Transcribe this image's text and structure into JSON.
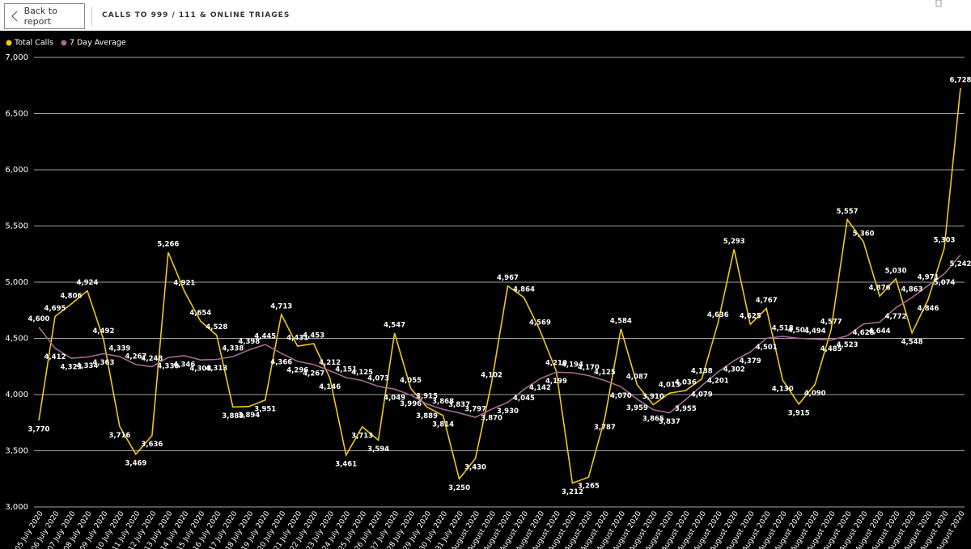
{
  "header": {
    "back_button": "Back to report",
    "title": "CALLS TO 999 / 111 & ONLINE TRIAGES"
  },
  "chart_data": {
    "type": "line",
    "categories": [
      "05 July 2020",
      "06 July 2020",
      "07 July 2020",
      "08 July 2020",
      "09 July 2020",
      "10 July 2020",
      "11 July 2020",
      "12 July 2020",
      "13 July 2020",
      "14 July 2020",
      "15 July 2020",
      "16 July 2020",
      "17 July 2020",
      "18 July 2020",
      "19 July 2020",
      "20 July 2020",
      "21 July 2020",
      "22 July 2020",
      "23 July 2020",
      "24 July 2020",
      "25 July 2020",
      "26 July 2020",
      "27 July 2020",
      "28 July 2020",
      "29 July 2020",
      "30 July 2020",
      "31 July 2020",
      "01 August 2020",
      "02 August 2020",
      "03 August 2020",
      "04 August 2020",
      "05 August 2020",
      "06 August 2020",
      "07 August 2020",
      "08 August 2020",
      "09 August 2020",
      "10 August 2020",
      "11 August 2020",
      "12 August 2020",
      "13 August 2020",
      "14 August 2020",
      "15 August 2020",
      "16 August 2020",
      "17 August 2020",
      "18 August 2020",
      "19 August 2020",
      "20 August 2020",
      "21 August 2020",
      "22 August 2020",
      "23 August 2020",
      "24 August 2020",
      "25 August 2020",
      "26 August 2020",
      "27 August 2020",
      "28 August 2020",
      "29 August 2020",
      "30 August 2020",
      "31 August 2020"
    ],
    "series": [
      {
        "name": "Total Calls",
        "color": "#f2c811",
        "values": [
          3770,
          4695,
          4806,
          4924,
          4492,
          3716,
          3469,
          3636,
          5266,
          4921,
          4654,
          4528,
          3889,
          3894,
          3951,
          4713,
          4431,
          4453,
          4146,
          3461,
          3713,
          3594,
          4547,
          4055,
          3889,
          3814,
          3250,
          3430,
          4102,
          4967,
          4864,
          4569,
          4210,
          3212,
          3265,
          3787,
          4584,
          4087,
          3910,
          4013,
          4036,
          4138,
          4636,
          5293,
          4625,
          4767,
          4130,
          3915,
          4090,
          4577,
          5557,
          5360,
          4876,
          5030,
          4548,
          4846,
          5303,
          6728
        ],
        "value_labels": [
          "3,770",
          "4,695",
          "4,806",
          "4,924",
          "4,492",
          "3,716",
          "3,469",
          "3,636",
          "5,266",
          "4,921",
          "4,654",
          "4,528",
          "3,889",
          "3,894",
          "3,951",
          "4,713",
          "4,431",
          "4,453",
          "4,146",
          "3,461",
          "3,713",
          "3,594",
          "4,547",
          "4,055",
          "3,889",
          "3,814",
          "3,250",
          "3,430",
          "4,102",
          "4,967",
          "4,864",
          "4,569",
          "4,210",
          "3,212",
          "3,265",
          "3,787",
          "4,584",
          "4,087",
          "3,910",
          "4,013",
          "4,036",
          "4,138",
          "4,636",
          "5,293",
          "4,625",
          "4,767",
          "4,130",
          "3,915",
          "4,090",
          "4,577",
          "5,557",
          "5,360",
          "4,876",
          "5,030",
          "4,548",
          "4,846",
          "5,303",
          "6,728"
        ]
      },
      {
        "name": "7 Day Average",
        "color": "#a66999",
        "values": [
          4600,
          4412,
          4323,
          4334,
          4363,
          4339,
          4267,
          4248,
          4330,
          4346,
          4308,
          4313,
          4338,
          4398,
          4445,
          4366,
          4296,
          4267,
          4212,
          4151,
          4125,
          4073,
          4049,
          3996,
          3915,
          3868,
          3837,
          3797,
          3870,
          3930,
          4045,
          4142,
          4199,
          4194,
          4170,
          4125,
          4070,
          3959,
          3865,
          3837,
          3955,
          4079,
          4201,
          4302,
          4379,
          4501,
          4518,
          4501,
          4494,
          4485,
          4523,
          4628,
          4644,
          4772,
          4863,
          4971,
          5074,
          5242
        ],
        "value_labels": [
          "4,600",
          "4,412",
          "4,323",
          "4,334",
          "4,363",
          "4,339",
          "4,267",
          "4,248",
          "4,330",
          "4,346",
          "4,308",
          "4,313",
          "4,338",
          "4,398",
          "4,445",
          "4,366",
          "4,296",
          "4,267",
          "4,212",
          "4,151",
          "4,125",
          "4,073",
          "4,049",
          "3,996",
          "3,915",
          "3,868",
          "3,837",
          "3,797",
          "3,870",
          "3,930",
          "4,045",
          "4,142",
          "4,199",
          "4,194",
          "4,170",
          "4,125",
          "4,070",
          "3,959",
          "3,865",
          "3,837",
          "3,955",
          "4,079",
          "4,201",
          "4,302",
          "4,379",
          "4,501",
          "4,518",
          "4,501",
          "4,494",
          "4,485",
          "4,523",
          "4,628",
          "4,644",
          "4,772",
          "4,863",
          "4,971",
          "5,074",
          "5,242"
        ]
      }
    ],
    "ylim": [
      3000,
      7000
    ],
    "yticks": [
      {
        "value": 3000,
        "label": "3,000"
      },
      {
        "value": 3500,
        "label": "3,500"
      },
      {
        "value": 4000,
        "label": "4,000"
      },
      {
        "value": 4500,
        "label": "4,500"
      },
      {
        "value": 5000,
        "label": "5,000"
      },
      {
        "value": 5500,
        "label": "5,500"
      },
      {
        "value": 6000,
        "label": "6,000"
      },
      {
        "value": 6500,
        "label": "6,500"
      },
      {
        "value": 7000,
        "label": "7,000"
      }
    ],
    "grid": true,
    "legend": "top-left"
  }
}
